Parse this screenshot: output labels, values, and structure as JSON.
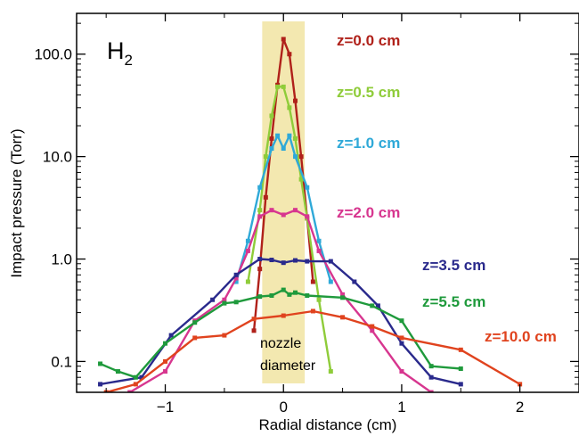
{
  "chart_data": {
    "type": "line",
    "title": "",
    "species_label": "H",
    "species_subscript": "2",
    "xlabel": "Radial distance (cm)",
    "ylabel": "Impact pressure (Torr)",
    "xlim": [
      -1.75,
      2.5
    ],
    "ylim": [
      0.05,
      250
    ],
    "yscale": "log",
    "x_ticks": [
      -1,
      0,
      1,
      2
    ],
    "x_tick_labels": [
      "−1",
      "0",
      "1",
      "2"
    ],
    "y_ticks": [
      0.1,
      1,
      10,
      100
    ],
    "y_tick_labels": [
      "0.1",
      "1.0",
      "10.0",
      "100.0"
    ],
    "grid": false,
    "legend": "labels placed beside curves (right side)",
    "nozzle_band": {
      "x_range": [
        -0.18,
        0.18
      ],
      "label_line1": "nozzle",
      "label_line2": "diameter",
      "color": "#f3e8b0"
    },
    "series": [
      {
        "name": "z=0.0 cm",
        "color": "#b0211a",
        "x": [
          -0.25,
          -0.2,
          -0.15,
          -0.1,
          -0.05,
          0.0,
          0.05,
          0.1,
          0.15,
          0.2,
          0.25
        ],
        "y": [
          0.2,
          0.8,
          4.0,
          15.0,
          50.0,
          140.0,
          100.0,
          35.0,
          10.0,
          2.5,
          0.6
        ]
      },
      {
        "name": "z=0.5 cm",
        "color": "#8fcc3a",
        "x": [
          -0.3,
          -0.2,
          -0.15,
          -0.1,
          -0.05,
          0.0,
          0.05,
          0.1,
          0.15,
          0.2,
          0.3,
          0.4
        ],
        "y": [
          0.6,
          3.0,
          10.0,
          25.0,
          48.0,
          48.0,
          30.0,
          15.0,
          6.0,
          2.5,
          0.4,
          0.08
        ]
      },
      {
        "name": "z=1.0 cm",
        "color": "#2fa9d8",
        "x": [
          -0.4,
          -0.3,
          -0.2,
          -0.1,
          -0.05,
          0.0,
          0.05,
          0.1,
          0.2,
          0.3,
          0.4
        ],
        "y": [
          0.6,
          1.5,
          5.0,
          12.0,
          16.0,
          12.0,
          16.0,
          10.0,
          5.0,
          1.5,
          0.6
        ]
      },
      {
        "name": "z=2.0 cm",
        "color": "#d7368f",
        "x": [
          -1.3,
          -1.0,
          -0.75,
          -0.5,
          -0.4,
          -0.3,
          -0.2,
          -0.1,
          0.0,
          0.1,
          0.2,
          0.3,
          0.5,
          0.75,
          1.0,
          1.25
        ],
        "y": [
          0.05,
          0.08,
          0.25,
          0.4,
          0.65,
          1.2,
          2.6,
          3.0,
          2.7,
          3.0,
          2.6,
          1.2,
          0.45,
          0.2,
          0.08,
          0.05
        ]
      },
      {
        "name": "z=3.5 cm",
        "color": "#2a2a8c",
        "x": [
          -1.55,
          -1.2,
          -0.95,
          -0.6,
          -0.4,
          -0.2,
          -0.1,
          0.0,
          0.1,
          0.2,
          0.4,
          0.6,
          0.8,
          1.0,
          1.25,
          1.5
        ],
        "y": [
          0.06,
          0.07,
          0.18,
          0.4,
          0.7,
          1.0,
          0.98,
          0.92,
          0.97,
          0.95,
          0.95,
          0.6,
          0.35,
          0.15,
          0.07,
          0.06
        ]
      },
      {
        "name": "z=5.5 cm",
        "color": "#1f9a3c",
        "x": [
          -1.55,
          -1.4,
          -1.25,
          -1.0,
          -0.75,
          -0.5,
          -0.4,
          -0.2,
          -0.1,
          0.0,
          0.05,
          0.1,
          0.2,
          0.5,
          0.75,
          1.0,
          1.25,
          1.5
        ],
        "y": [
          0.095,
          0.08,
          0.07,
          0.15,
          0.24,
          0.37,
          0.38,
          0.43,
          0.44,
          0.5,
          0.45,
          0.47,
          0.44,
          0.42,
          0.35,
          0.25,
          0.09,
          0.085
        ]
      },
      {
        "name": "z=10.0 cm",
        "color": "#e0431e",
        "x": [
          -1.5,
          -1.25,
          -1.0,
          -0.75,
          -0.5,
          -0.25,
          0.0,
          0.25,
          0.5,
          0.75,
          1.0,
          1.5,
          2.0
        ],
        "y": [
          0.05,
          0.06,
          0.1,
          0.17,
          0.18,
          0.26,
          0.28,
          0.31,
          0.27,
          0.22,
          0.17,
          0.13,
          0.06
        ]
      }
    ]
  }
}
